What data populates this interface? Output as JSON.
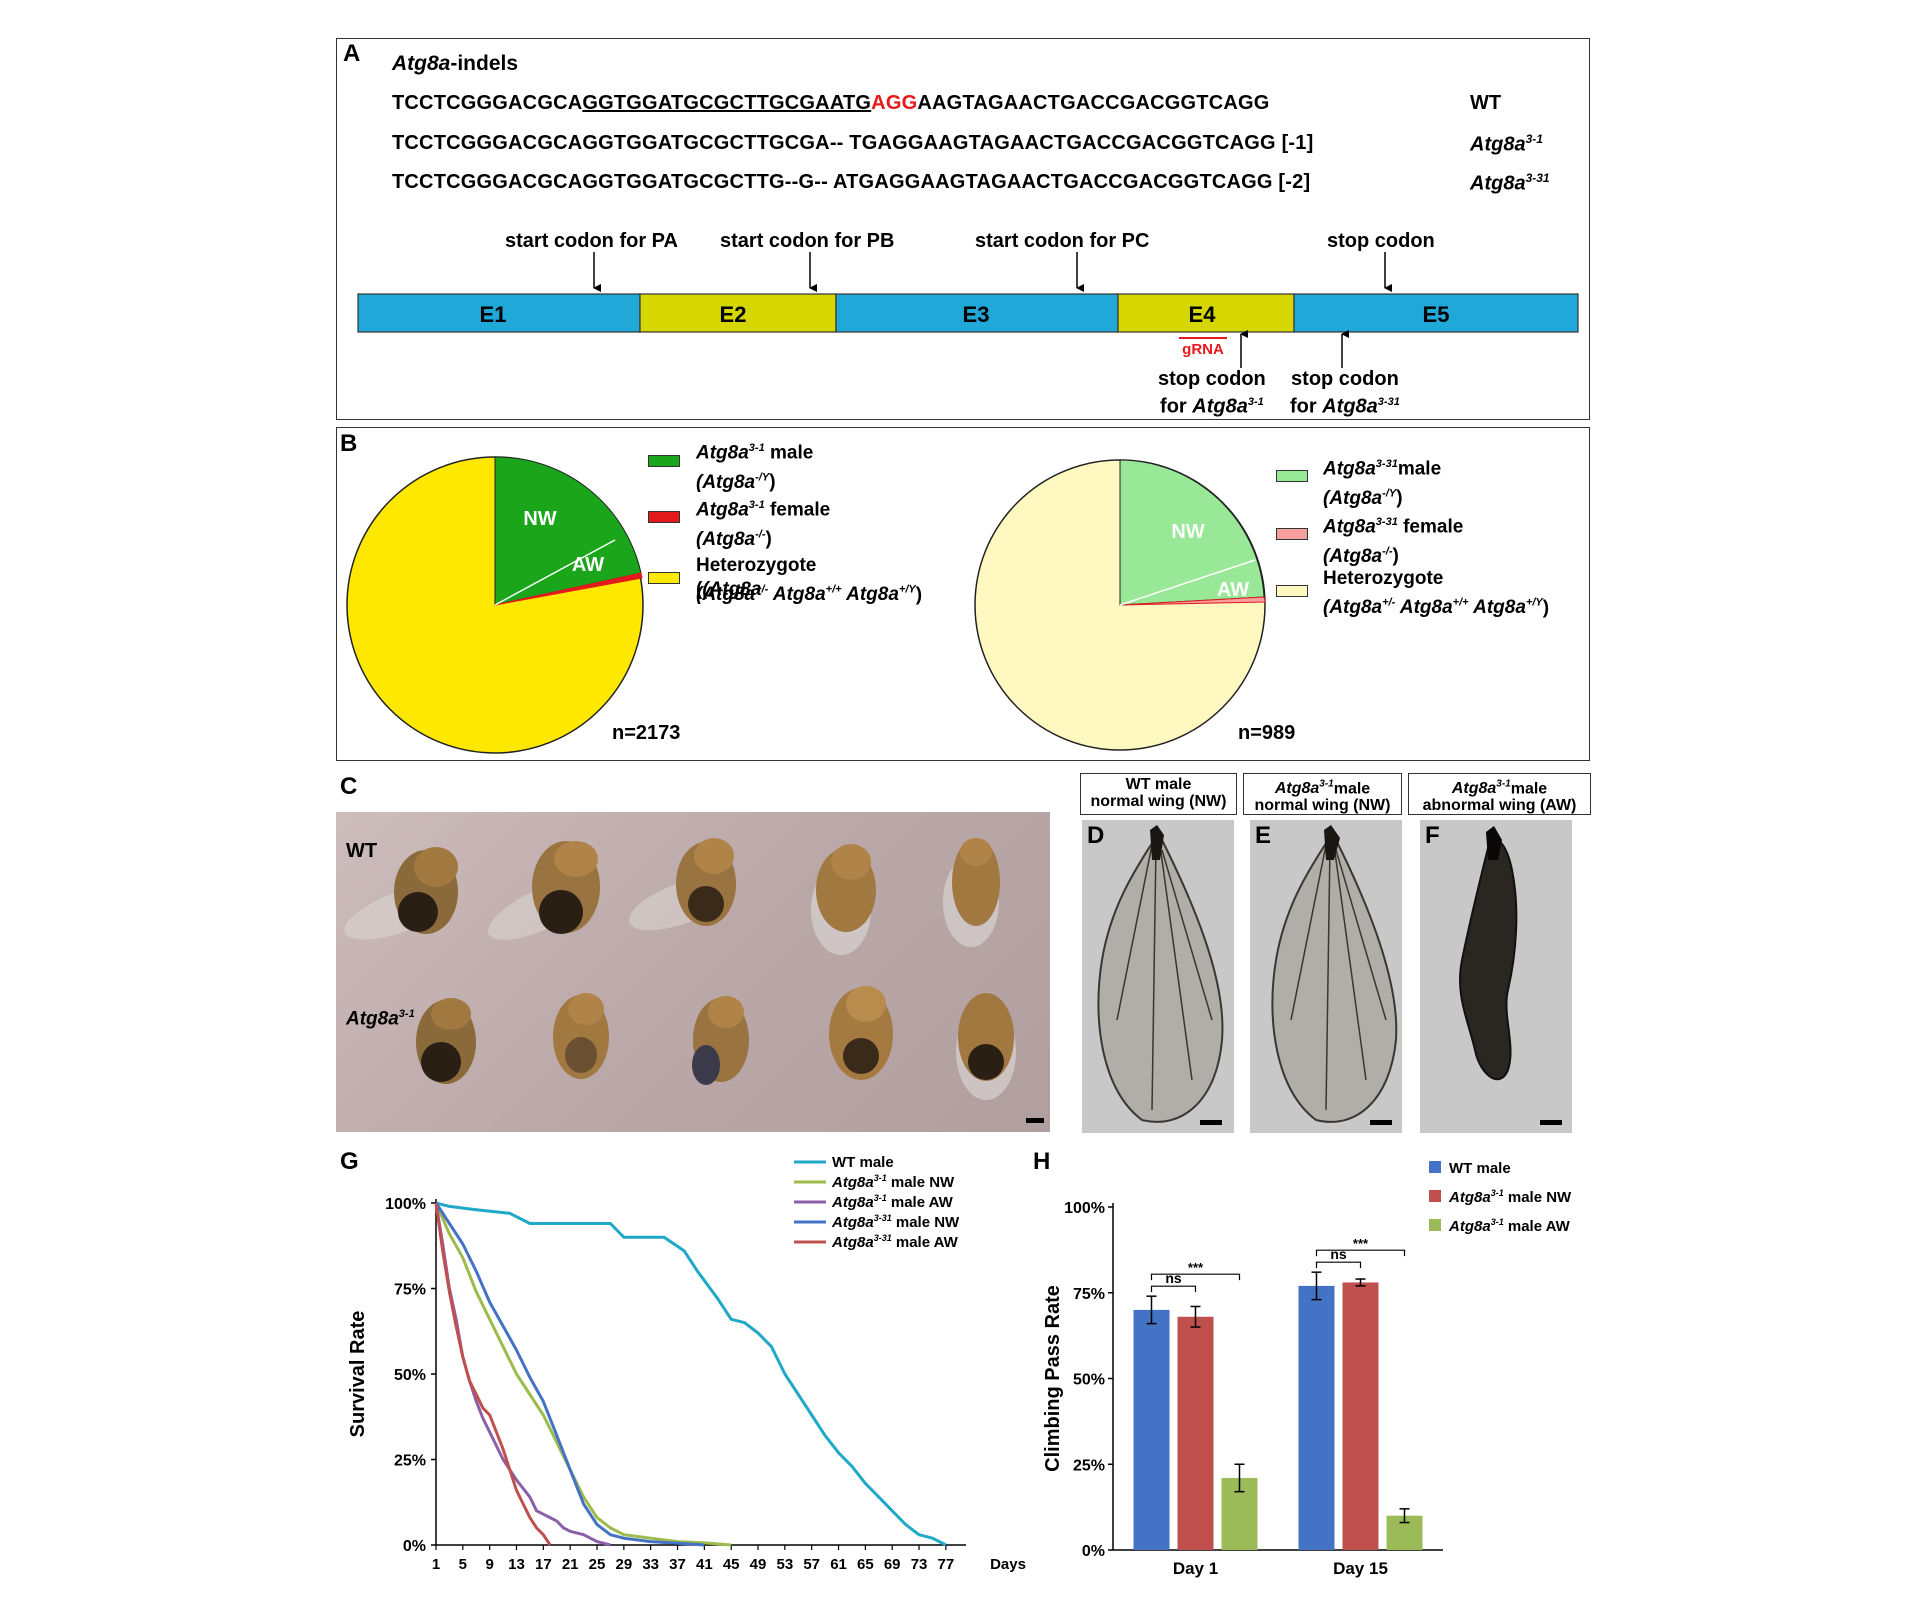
{
  "panels": {
    "A": "A",
    "B": "B",
    "C": "C",
    "D": "D",
    "E": "E",
    "F": "F",
    "G": "G",
    "H": "H"
  },
  "panel_a": {
    "title_italic": "Atg8a",
    "title_rest": "-indels",
    "seq_wt_prefix": "TCCTCGGGACGCA",
    "seq_wt_grna": "GGTGGATGCGCTTGCGAATG",
    "seq_wt_pam": "AGG",
    "seq_wt_suffix": "AAGTAGAACTGACCGACGGTCAGG",
    "seq_m1": "TCCTCGGGACGCAGGTGGATGCGCTTGCGA-- TGAGGAAGTAGAACTGACCGACGGTCAGG [-1]",
    "seq_m2": "TCCTCGGGACGCAGGTGGATGCGCTTG--G-- ATGAGGAAGTAGAACTGACCGACGGTCAGG [-2]",
    "label_wt": "WT",
    "label_m1_base": "Atg8a",
    "label_m1_sup": "3-1",
    "label_m2_base": "Atg8a",
    "label_m2_sup": "3-31",
    "start_pa": "start codon for PA",
    "start_pb": "start codon for PB",
    "start_pc": "start codon for PC",
    "stop": "stop codon",
    "exons": [
      "E1",
      "E2",
      "E3",
      "E4",
      "E5"
    ],
    "grna": "gRNA",
    "stop_line1": "stop codon",
    "stop_for": "for ",
    "stop_m1_base": "Atg8a",
    "stop_m1_sup": "3-1",
    "stop_m2_base": "Atg8a",
    "stop_m2_sup": "3-31",
    "colors": {
      "blue_exon": "#1fa8d8",
      "yellow_exon": "#d6d600",
      "red": "#e8191d"
    }
  },
  "panel_b": {
    "pie1": {
      "n": "n=2173",
      "nw": "NW",
      "aw": "AW",
      "colors": {
        "male": "#1ba51b",
        "female": "#e31a1c",
        "het": "#ffe800"
      }
    },
    "pie2": {
      "n": "n=989",
      "nw": "NW",
      "aw": "AW",
      "colors": {
        "male": "#98e898",
        "female": "#f7a0a0",
        "het": "#fff8c0"
      }
    },
    "legend1": {
      "male_a": "Atg8a",
      "male_sup": "3-1",
      "male_b": " male",
      "male_paren": "(Atg8a",
      "male_paren_sup": "-/Y",
      "male_paren_end": ")",
      "female_a": "Atg8a",
      "female_sup": "3-1",
      "female_b": " female",
      "female_paren": "(Atg8a",
      "female_paren_sup": "-/-",
      "female_paren_end": ")",
      "het": "Heterozygote",
      "het_line": "(Atg8a",
      "het_s1": "+/-",
      "het_m1": " Atg8a",
      "het_s2": "+/+",
      "het_m2": " Atg8a",
      "het_s3": "+/Y",
      "het_end": ")"
    },
    "legend2": {
      "male_a": "Atg8a",
      "male_sup": "3-31",
      "male_b": "male",
      "male_paren": "(Atg8a",
      "male_paren_sup": "-/Y",
      "male_paren_end": ")",
      "female_a": "Atg8a",
      "female_sup": "3-31",
      "female_b": " female",
      "female_paren": "(Atg8a",
      "female_paren_sup": "-/-",
      "female_paren_end": ")",
      "het": "Heterozygote",
      "het_line": "(Atg8a",
      "het_s1": "+/-",
      "het_m1": " Atg8a",
      "het_s2": "+/+",
      "het_m2": " Atg8a",
      "het_s3": "+/Y",
      "het_end": ")"
    }
  },
  "panel_c": {
    "wt": "WT",
    "mut_base": "Atg8a",
    "mut_sup": "3-1"
  },
  "headers": {
    "d_l1": "WT male",
    "d_l2": "normal wing (NW)",
    "e_l1_base": "Atg8a",
    "e_l1_sup": "3-1",
    "e_l1_rest": "male",
    "e_l2": "normal wing (NW)",
    "f_l1_base": "Atg8a",
    "f_l1_sup": "3-1",
    "f_l1_rest": "male",
    "f_l2": "abnormal wing (AW)"
  },
  "chart_data": [
    {
      "type": "line",
      "xlabel": "Days",
      "ylabel": "Survival Rate",
      "x_ticks": [
        1,
        5,
        9,
        13,
        17,
        21,
        25,
        29,
        33,
        37,
        41,
        45,
        49,
        53,
        57,
        61,
        65,
        69,
        73,
        77
      ],
      "y_ticks": [
        "0%",
        "25%",
        "50%",
        "75%",
        "100%"
      ],
      "ylim": [
        0,
        100
      ],
      "xlim": [
        1,
        80
      ],
      "series": [
        {
          "name": "WT male",
          "color": "#20a8c8",
          "points": [
            [
              1,
              100
            ],
            [
              3,
              99
            ],
            [
              7,
              98
            ],
            [
              12,
              97
            ],
            [
              15,
              94
            ],
            [
              27,
              94
            ],
            [
              29,
              90
            ],
            [
              35,
              90
            ],
            [
              38,
              86
            ],
            [
              40,
              80
            ],
            [
              43,
              72
            ],
            [
              45,
              66
            ],
            [
              47,
              65
            ],
            [
              49,
              62
            ],
            [
              51,
              58
            ],
            [
              53,
              50
            ],
            [
              55,
              44
            ],
            [
              57,
              38
            ],
            [
              59,
              32
            ],
            [
              61,
              27
            ],
            [
              63,
              23
            ],
            [
              65,
              18
            ],
            [
              67,
              14
            ],
            [
              69,
              10
            ],
            [
              71,
              6
            ],
            [
              73,
              3
            ],
            [
              75,
              2
            ],
            [
              77,
              0
            ]
          ]
        },
        {
          "name": "Atg8a3-1 male NW",
          "color": "#9cbb4a",
          "points": [
            [
              1,
              100
            ],
            [
              3,
              91
            ],
            [
              5,
              84
            ],
            [
              7,
              74
            ],
            [
              9,
              66
            ],
            [
              11,
              58
            ],
            [
              13,
              50
            ],
            [
              15,
              44
            ],
            [
              17,
              38
            ],
            [
              19,
              30
            ],
            [
              21,
              22
            ],
            [
              23,
              14
            ],
            [
              25,
              8
            ],
            [
              27,
              5
            ],
            [
              29,
              3
            ],
            [
              33,
              2
            ],
            [
              37,
              1
            ],
            [
              41,
              0.6
            ],
            [
              45,
              0
            ]
          ]
        },
        {
          "name": "Atg8a3-1 male AW",
          "color": "#8c60a8",
          "points": [
            [
              1,
              100
            ],
            [
              2,
              88
            ],
            [
              3,
              75
            ],
            [
              4,
              66
            ],
            [
              5,
              55
            ],
            [
              6,
              48
            ],
            [
              7,
              42
            ],
            [
              8,
              37
            ],
            [
              9,
              33
            ],
            [
              11,
              25
            ],
            [
              13,
              19
            ],
            [
              15,
              14
            ],
            [
              16,
              10
            ],
            [
              17,
              9
            ],
            [
              18,
              8
            ],
            [
              19,
              7
            ],
            [
              20,
              5
            ],
            [
              21,
              4
            ],
            [
              23,
              3
            ],
            [
              25,
              1
            ],
            [
              27,
              0
            ]
          ]
        },
        {
          "name": "Atg8a3-31 male NW",
          "color": "#4472c4",
          "points": [
            [
              1,
              100
            ],
            [
              3,
              94
            ],
            [
              5,
              88
            ],
            [
              7,
              80
            ],
            [
              9,
              71
            ],
            [
              11,
              64
            ],
            [
              13,
              57
            ],
            [
              15,
              49
            ],
            [
              17,
              42
            ],
            [
              19,
              32
            ],
            [
              21,
              22
            ],
            [
              23,
              12
            ],
            [
              25,
              6
            ],
            [
              27,
              3
            ],
            [
              29,
              2
            ],
            [
              33,
              1
            ],
            [
              37,
              0.5
            ],
            [
              41,
              0
            ]
          ]
        },
        {
          "name": "Atg8a3-31 male AW",
          "color": "#c0504d",
          "points": [
            [
              1,
              100
            ],
            [
              2,
              86
            ],
            [
              3,
              74
            ],
            [
              4,
              64
            ],
            [
              5,
              55
            ],
            [
              6,
              48
            ],
            [
              7,
              44
            ],
            [
              8,
              40
            ],
            [
              9,
              38
            ],
            [
              10,
              33
            ],
            [
              11,
              28
            ],
            [
              12,
              22
            ],
            [
              13,
              16
            ],
            [
              14,
              12
            ],
            [
              15,
              8
            ],
            [
              16,
              5
            ],
            [
              17,
              3
            ],
            [
              18,
              0
            ]
          ]
        }
      ],
      "legend_labels": [
        {
          "base": "WT male",
          "sup": "",
          "rest": ""
        },
        {
          "base": "Atg8a",
          "sup": "3-1",
          "rest": " male NW"
        },
        {
          "base": "Atg8a",
          "sup": "3-1",
          "rest": " male AW"
        },
        {
          "base": "Atg8a",
          "sup": "3-31",
          "rest": " male NW"
        },
        {
          "base": "Atg8a",
          "sup": "3-31",
          "rest": " male AW"
        }
      ]
    },
    {
      "type": "bar",
      "ylabel": "Climbing Pass Rate",
      "categories": [
        "Day 1",
        "Day 15"
      ],
      "y_ticks": [
        "0%",
        "25%",
        "50%",
        "75%",
        "100%"
      ],
      "ylim": [
        0,
        100
      ],
      "series": [
        {
          "name": "WT male",
          "color": "#4472c4",
          "values": [
            70,
            77
          ],
          "errors": [
            4,
            4
          ]
        },
        {
          "name": "Atg8a3-1 male NW",
          "color": "#c0504d",
          "values": [
            68,
            78
          ],
          "errors": [
            3,
            1
          ]
        },
        {
          "name": "Atg8a3-1 male AW",
          "color": "#9bbb59",
          "values": [
            21,
            10
          ],
          "errors": [
            4,
            2
          ]
        }
      ],
      "legend_labels": [
        {
          "base": "WT male",
          "sup": "",
          "rest": ""
        },
        {
          "base": "Atg8a",
          "sup": "3-1",
          "rest": " male NW"
        },
        {
          "base": "Atg8a",
          "sup": "3-1",
          "rest": " male AW"
        }
      ],
      "significance": {
        "ns": "ns",
        "stars": "***"
      }
    }
  ]
}
